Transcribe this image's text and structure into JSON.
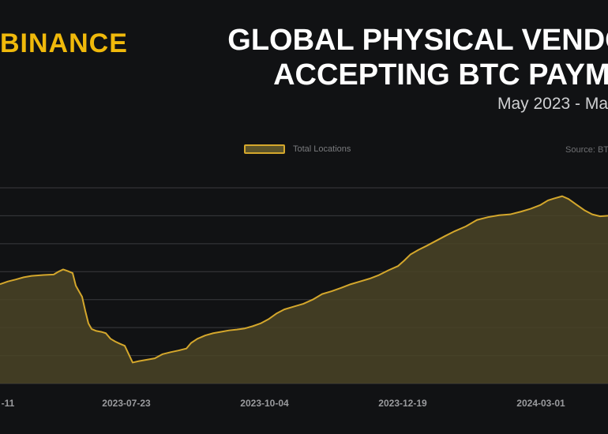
{
  "brand": "BINANCE",
  "title_line1": "GLOBAL PHYSICAL VENDO",
  "title_line2": "ACCEPTING BTC PAYME",
  "subtitle": "May 2023 - Ma",
  "source": "Source: BT",
  "colors": {
    "accent": "#f0b90b",
    "line": "#d4a72c",
    "fill": "#4a4426",
    "background": "#111214",
    "grid": "#3a3b3e"
  },
  "chart_data": {
    "type": "area",
    "title": "",
    "xlabel": "",
    "ylabel": "",
    "grid": true,
    "legend_position": "top-center",
    "x_tick_labels": [
      "-11",
      "2023-07-23",
      "2023-10-04",
      "2023-12-19",
      "2024-03-01"
    ],
    "ylim": [
      0,
      7
    ],
    "series": [
      {
        "name": "Total Locations",
        "points": [
          [
            0,
            3.55
          ],
          [
            10,
            3.65
          ],
          [
            20,
            3.72
          ],
          [
            30,
            3.8
          ],
          [
            40,
            3.85
          ],
          [
            55,
            3.88
          ],
          [
            68,
            3.9
          ],
          [
            74,
            4.0
          ],
          [
            80,
            4.08
          ],
          [
            86,
            4.02
          ],
          [
            92,
            3.95
          ],
          [
            96,
            3.5
          ],
          [
            100,
            3.3
          ],
          [
            104,
            3.1
          ],
          [
            108,
            2.6
          ],
          [
            112,
            2.15
          ],
          [
            116,
            1.95
          ],
          [
            122,
            1.88
          ],
          [
            128,
            1.85
          ],
          [
            134,
            1.8
          ],
          [
            140,
            1.6
          ],
          [
            146,
            1.5
          ],
          [
            152,
            1.42
          ],
          [
            158,
            1.35
          ],
          [
            163,
            1.05
          ],
          [
            168,
            0.75
          ],
          [
            176,
            0.8
          ],
          [
            186,
            0.85
          ],
          [
            196,
            0.9
          ],
          [
            206,
            1.05
          ],
          [
            216,
            1.12
          ],
          [
            226,
            1.18
          ],
          [
            236,
            1.25
          ],
          [
            242,
            1.45
          ],
          [
            250,
            1.6
          ],
          [
            260,
            1.72
          ],
          [
            270,
            1.8
          ],
          [
            280,
            1.85
          ],
          [
            290,
            1.9
          ],
          [
            300,
            1.93
          ],
          [
            310,
            1.97
          ],
          [
            320,
            2.05
          ],
          [
            330,
            2.15
          ],
          [
            340,
            2.3
          ],
          [
            350,
            2.5
          ],
          [
            360,
            2.65
          ],
          [
            372,
            2.75
          ],
          [
            384,
            2.85
          ],
          [
            396,
            3.0
          ],
          [
            408,
            3.2
          ],
          [
            420,
            3.3
          ],
          [
            432,
            3.42
          ],
          [
            444,
            3.55
          ],
          [
            456,
            3.65
          ],
          [
            468,
            3.75
          ],
          [
            480,
            3.88
          ],
          [
            492,
            4.05
          ],
          [
            504,
            4.2
          ],
          [
            512,
            4.4
          ],
          [
            520,
            4.62
          ],
          [
            530,
            4.78
          ],
          [
            540,
            4.92
          ],
          [
            552,
            5.1
          ],
          [
            564,
            5.28
          ],
          [
            576,
            5.45
          ],
          [
            590,
            5.62
          ],
          [
            604,
            5.85
          ],
          [
            618,
            5.95
          ],
          [
            632,
            6.02
          ],
          [
            646,
            6.05
          ],
          [
            660,
            6.15
          ],
          [
            672,
            6.25
          ],
          [
            684,
            6.38
          ],
          [
            694,
            6.55
          ],
          [
            702,
            6.62
          ],
          [
            712,
            6.7
          ],
          [
            720,
            6.6
          ],
          [
            730,
            6.4
          ],
          [
            740,
            6.2
          ],
          [
            750,
            6.05
          ],
          [
            760,
            5.98
          ],
          [
            770,
            6.0
          ]
        ]
      }
    ]
  }
}
